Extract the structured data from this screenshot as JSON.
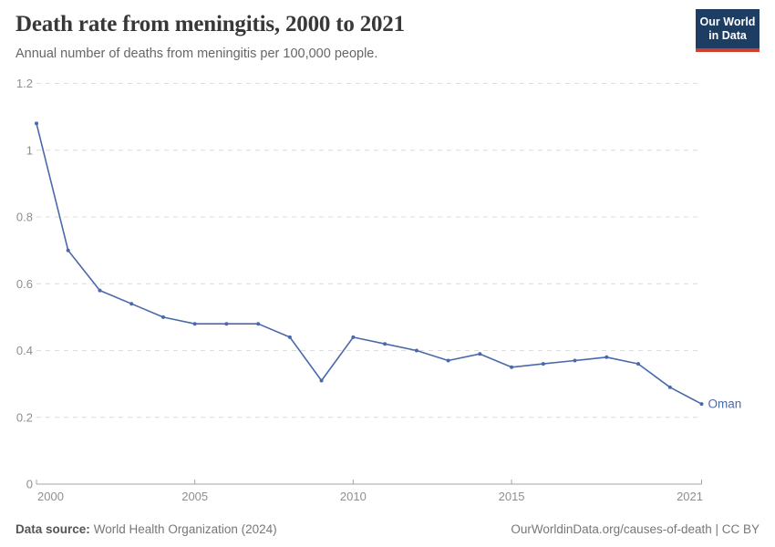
{
  "header": {
    "title": "Death rate from meningitis, 2000 to 2021",
    "subtitle": "Annual number of deaths from meningitis per 100,000 people."
  },
  "logo": {
    "line1": "Our World",
    "line2": "in Data",
    "bg_color": "#1d3d63",
    "bar_color": "#d0402e"
  },
  "chart_data": {
    "type": "line",
    "title": "Death rate from meningitis, 2000 to 2021",
    "xlabel": "",
    "ylabel": "Annual number of deaths from meningitis per 100,000 people",
    "xlim": [
      2000,
      2021
    ],
    "ylim": [
      0,
      1.2
    ],
    "grid": "horizontal-dashed",
    "legend_position": "end-of-line-label",
    "x": [
      2000,
      2001,
      2002,
      2003,
      2004,
      2005,
      2006,
      2007,
      2008,
      2009,
      2010,
      2011,
      2012,
      2013,
      2014,
      2015,
      2016,
      2017,
      2018,
      2019,
      2020,
      2021
    ],
    "series": [
      {
        "name": "Oman",
        "color": "#4b69aa",
        "values": [
          1.08,
          0.7,
          0.58,
          0.54,
          0.5,
          0.48,
          0.48,
          0.48,
          0.44,
          0.31,
          0.44,
          0.42,
          0.4,
          0.37,
          0.39,
          0.35,
          0.36,
          0.37,
          0.38,
          0.36,
          0.29,
          0.24
        ]
      }
    ],
    "yticks": [
      0,
      0.2,
      0.4,
      0.6,
      0.8,
      1,
      1.2
    ],
    "ytick_labels": [
      "0",
      "0.2",
      "0.4",
      "0.6",
      "0.8",
      "1",
      "1.2"
    ],
    "xticks": [
      2000,
      2005,
      2010,
      2015,
      2021
    ],
    "xtick_labels": [
      "2000",
      "2005",
      "2010",
      "2015",
      "2021"
    ]
  },
  "footer": {
    "source_label": "Data source:",
    "source_value": "World Health Organization (2024)",
    "credit": "OurWorldinData.org/causes-of-death | CC BY"
  }
}
